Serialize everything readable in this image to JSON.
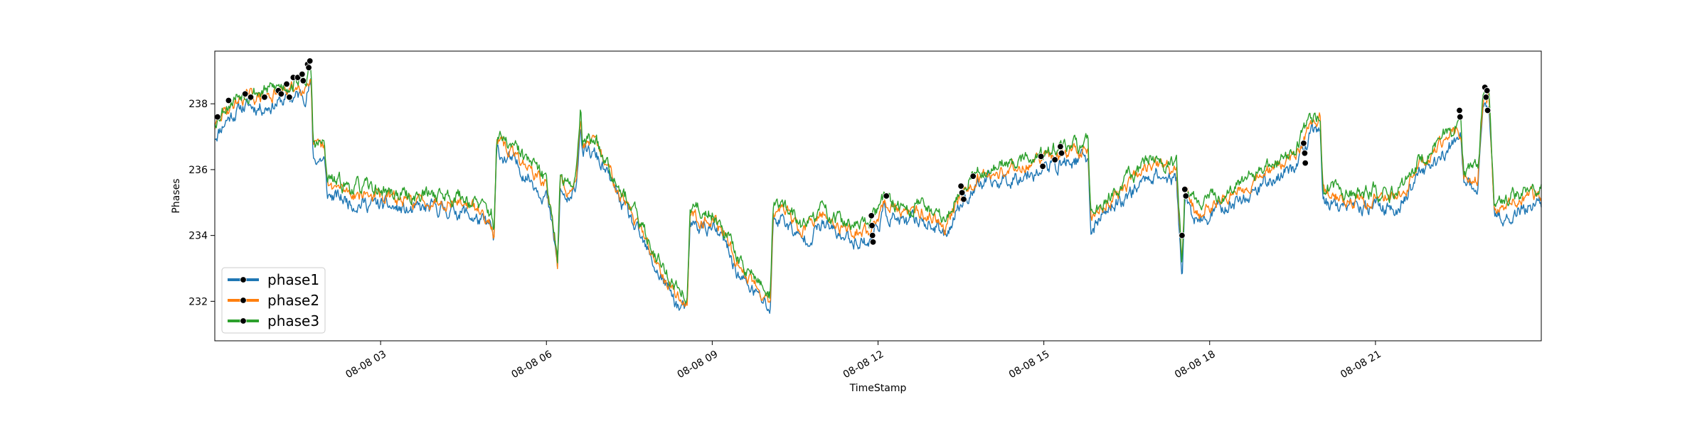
{
  "chart_data": {
    "type": "line",
    "title": "",
    "xlabel": "TimeStamp",
    "ylabel": "Phases",
    "x_range_hours": [
      0,
      24
    ],
    "ylim": [
      230.8,
      239.6
    ],
    "x_ticks": [
      {
        "hour": 3,
        "label": "08-08 03"
      },
      {
        "hour": 6,
        "label": "08-08 06"
      },
      {
        "hour": 9,
        "label": "08-08 09"
      },
      {
        "hour": 12,
        "label": "08-08 12"
      },
      {
        "hour": 15,
        "label": "08-08 15"
      },
      {
        "hour": 18,
        "label": "08-08 18"
      },
      {
        "hour": 21,
        "label": "08-08 21"
      }
    ],
    "y_ticks": [
      {
        "value": 232,
        "label": "232"
      },
      {
        "value": 234,
        "label": "234"
      },
      {
        "value": 236,
        "label": "236"
      },
      {
        "value": 238,
        "label": "238"
      }
    ],
    "legend": {
      "placement": "lower-left"
    },
    "base_curve": [
      [
        0.0,
        237.3
      ],
      [
        0.2,
        237.8
      ],
      [
        0.5,
        238.2
      ],
      [
        0.9,
        238.2
      ],
      [
        1.3,
        238.4
      ],
      [
        1.65,
        238.6
      ],
      [
        1.74,
        238.9
      ],
      [
        1.78,
        236.6
      ],
      [
        1.98,
        236.6
      ],
      [
        2.03,
        235.5
      ],
      [
        2.5,
        235.3
      ],
      [
        3.0,
        235.2
      ],
      [
        3.5,
        235.0
      ],
      [
        4.0,
        235.1
      ],
      [
        4.5,
        235.0
      ],
      [
        5.0,
        234.5
      ],
      [
        5.05,
        234.0
      ],
      [
        5.1,
        236.8
      ],
      [
        5.3,
        236.6
      ],
      [
        5.6,
        236.2
      ],
      [
        6.0,
        235.5
      ],
      [
        6.15,
        234.0
      ],
      [
        6.2,
        233.2
      ],
      [
        6.25,
        235.6
      ],
      [
        6.45,
        235.2
      ],
      [
        6.55,
        236.0
      ],
      [
        6.62,
        237.9
      ],
      [
        6.65,
        236.8
      ],
      [
        6.9,
        236.7
      ],
      [
        7.2,
        235.8
      ],
      [
        7.5,
        234.8
      ],
      [
        8.0,
        233.2
      ],
      [
        8.4,
        232.1
      ],
      [
        8.55,
        232.0
      ],
      [
        8.6,
        234.6
      ],
      [
        9.0,
        234.5
      ],
      [
        9.2,
        234.1
      ],
      [
        9.5,
        233.0
      ],
      [
        9.8,
        232.5
      ],
      [
        10.05,
        232.0
      ],
      [
        10.1,
        234.7
      ],
      [
        10.3,
        234.8
      ],
      [
        10.6,
        234.1
      ],
      [
        11.0,
        234.6
      ],
      [
        11.4,
        234.2
      ],
      [
        11.85,
        234.1
      ],
      [
        12.1,
        235.0
      ],
      [
        12.5,
        234.6
      ],
      [
        12.8,
        234.8
      ],
      [
        13.2,
        234.3
      ],
      [
        13.5,
        235.3
      ],
      [
        13.8,
        235.8
      ],
      [
        14.2,
        235.9
      ],
      [
        14.7,
        236.2
      ],
      [
        15.0,
        236.3
      ],
      [
        15.4,
        236.5
      ],
      [
        15.8,
        236.6
      ],
      [
        15.85,
        234.4
      ],
      [
        16.1,
        235.0
      ],
      [
        16.5,
        235.5
      ],
      [
        17.0,
        236.2
      ],
      [
        17.4,
        235.9
      ],
      [
        17.5,
        233.0
      ],
      [
        17.55,
        235.3
      ],
      [
        17.8,
        234.6
      ],
      [
        18.2,
        235.1
      ],
      [
        18.6,
        235.4
      ],
      [
        19.0,
        235.9
      ],
      [
        19.5,
        236.3
      ],
      [
        19.8,
        237.2
      ],
      [
        20.0,
        237.6
      ],
      [
        20.05,
        235.3
      ],
      [
        20.3,
        235.2
      ],
      [
        20.7,
        235.0
      ],
      [
        21.0,
        235.2
      ],
      [
        21.4,
        235.1
      ],
      [
        21.8,
        236.1
      ],
      [
        22.2,
        236.8
      ],
      [
        22.4,
        237.0
      ],
      [
        22.55,
        237.1
      ],
      [
        22.6,
        235.7
      ],
      [
        22.85,
        235.8
      ],
      [
        22.95,
        238.2
      ],
      [
        23.05,
        238.2
      ],
      [
        23.15,
        234.8
      ],
      [
        23.5,
        235.0
      ],
      [
        24.0,
        235.3
      ]
    ],
    "series": [
      {
        "name": "phase1",
        "color": "#1f77b4",
        "offset": -0.28,
        "noise": 0.17,
        "seed": 11
      },
      {
        "name": "phase2",
        "color": "#ff7f0e",
        "offset": 0.0,
        "noise": 0.15,
        "seed": 29
      },
      {
        "name": "phase3",
        "color": "#2ca02c",
        "offset": 0.18,
        "noise": 0.17,
        "seed": 53
      }
    ],
    "markers": [
      {
        "x": 0.05,
        "y": 237.6
      },
      {
        "x": 0.25,
        "y": 238.1
      },
      {
        "x": 0.55,
        "y": 238.3
      },
      {
        "x": 0.65,
        "y": 238.2
      },
      {
        "x": 0.9,
        "y": 238.2
      },
      {
        "x": 1.15,
        "y": 238.4
      },
      {
        "x": 1.2,
        "y": 238.3
      },
      {
        "x": 1.3,
        "y": 238.6
      },
      {
        "x": 1.35,
        "y": 238.2
      },
      {
        "x": 1.42,
        "y": 238.8
      },
      {
        "x": 1.5,
        "y": 238.8
      },
      {
        "x": 1.58,
        "y": 238.9
      },
      {
        "x": 1.6,
        "y": 238.7
      },
      {
        "x": 1.68,
        "y": 239.2
      },
      {
        "x": 1.7,
        "y": 239.1
      },
      {
        "x": 1.72,
        "y": 239.3
      },
      {
        "x": 11.88,
        "y": 234.6
      },
      {
        "x": 11.89,
        "y": 234.3
      },
      {
        "x": 11.9,
        "y": 234.0
      },
      {
        "x": 11.91,
        "y": 233.8
      },
      {
        "x": 12.15,
        "y": 235.2
      },
      {
        "x": 13.5,
        "y": 235.5
      },
      {
        "x": 13.52,
        "y": 235.3
      },
      {
        "x": 13.55,
        "y": 235.1
      },
      {
        "x": 13.72,
        "y": 235.8
      },
      {
        "x": 14.95,
        "y": 236.4
      },
      {
        "x": 14.98,
        "y": 236.1
      },
      {
        "x": 15.2,
        "y": 236.3
      },
      {
        "x": 15.3,
        "y": 236.7
      },
      {
        "x": 15.32,
        "y": 236.5
      },
      {
        "x": 17.5,
        "y": 234.0
      },
      {
        "x": 17.55,
        "y": 235.4
      },
      {
        "x": 17.57,
        "y": 235.2
      },
      {
        "x": 19.7,
        "y": 236.8
      },
      {
        "x": 19.72,
        "y": 236.5
      },
      {
        "x": 19.73,
        "y": 236.2
      },
      {
        "x": 22.52,
        "y": 237.8
      },
      {
        "x": 22.53,
        "y": 237.6
      },
      {
        "x": 22.98,
        "y": 238.5
      },
      {
        "x": 23.0,
        "y": 238.2
      },
      {
        "x": 23.02,
        "y": 238.4
      },
      {
        "x": 23.03,
        "y": 237.8
      }
    ]
  }
}
